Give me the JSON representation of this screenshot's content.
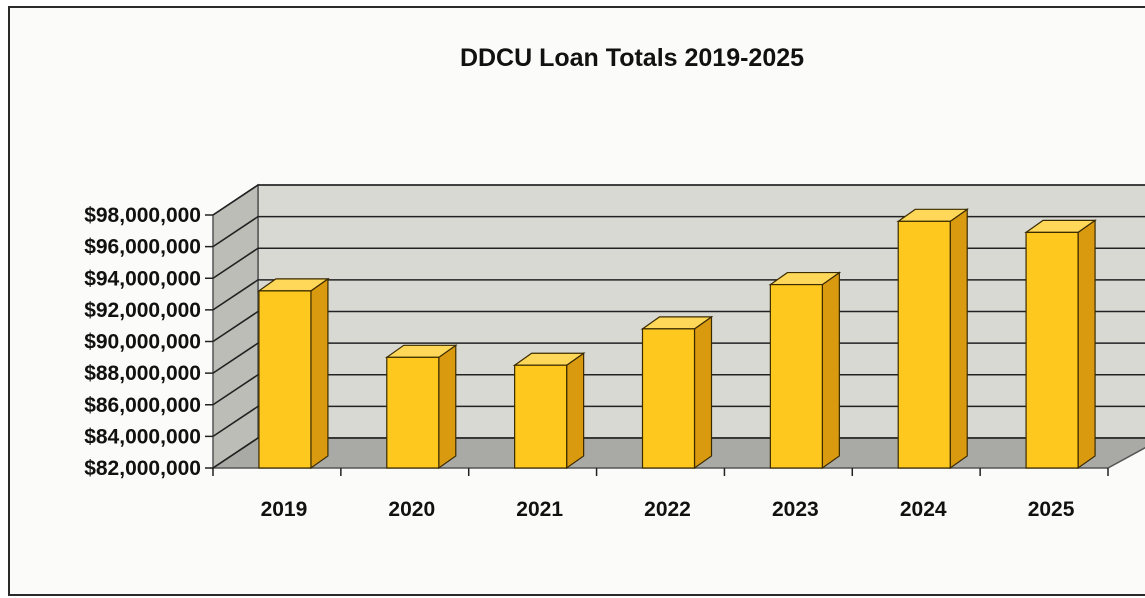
{
  "chart_data": {
    "type": "bar",
    "title": "DDCU Loan Totals 2019-2025",
    "xlabel": "",
    "ylabel": "",
    "categories": [
      "2019",
      "2020",
      "2021",
      "2022",
      "2023",
      "2024",
      "2025"
    ],
    "values": [
      93200000,
      89000000,
      88500000,
      90800000,
      93600000,
      97600000,
      96900000
    ],
    "ylim": [
      82000000,
      98000000
    ],
    "yticks": [
      82000000,
      84000000,
      86000000,
      88000000,
      90000000,
      92000000,
      94000000,
      96000000,
      98000000
    ],
    "ytick_labels": [
      "$82,000,000",
      "$84,000,000",
      "$86,000,000",
      "$88,000,000",
      "$90,000,000",
      "$92,000,000",
      "$94,000,000",
      "$96,000,000",
      "$98,000,000"
    ],
    "grid": true,
    "style": "3d-bar",
    "colors": {
      "bar_front": "#FFC81E",
      "bar_side": "#D99A10",
      "bar_top": "#FFD85A",
      "back_wall": "#D9D9D4",
      "side_wall": "#BDBDB8",
      "floor": "#A9A9A5"
    }
  }
}
